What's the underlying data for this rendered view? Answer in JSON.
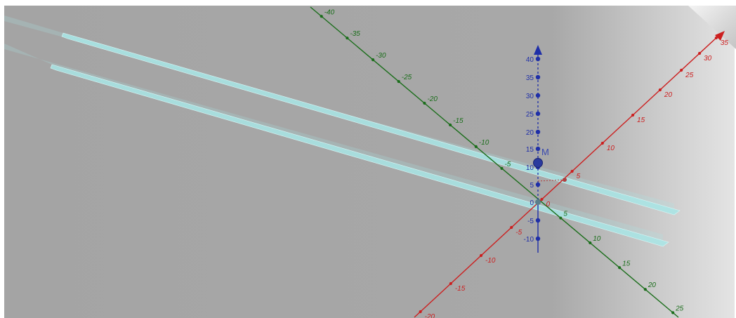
{
  "view": {
    "background_color": "#a6a6a6",
    "plane_color": "#a8e6e6",
    "x_axis_color": "#cc1f1f",
    "y_axis_color": "#1b6e1b",
    "z_axis_color": "#1f2fa8"
  },
  "axes": {
    "x": {
      "tick_labels": [
        "-20",
        "-15",
        "-10",
        "-5",
        "0",
        "5",
        "10",
        "15",
        "20",
        "25",
        "30",
        "35"
      ]
    },
    "y": {
      "tick_labels": [
        "-40",
        "-35",
        "-30",
        "-25",
        "-20",
        "-15",
        "-10",
        "-5",
        "5",
        "10",
        "15",
        "20",
        "25"
      ]
    },
    "z": {
      "tick_labels": [
        "40",
        "35",
        "30",
        "25",
        "20",
        "15",
        "10",
        "5",
        "0",
        "-5",
        "-10"
      ]
    }
  },
  "points": [
    {
      "label": "M"
    }
  ]
}
